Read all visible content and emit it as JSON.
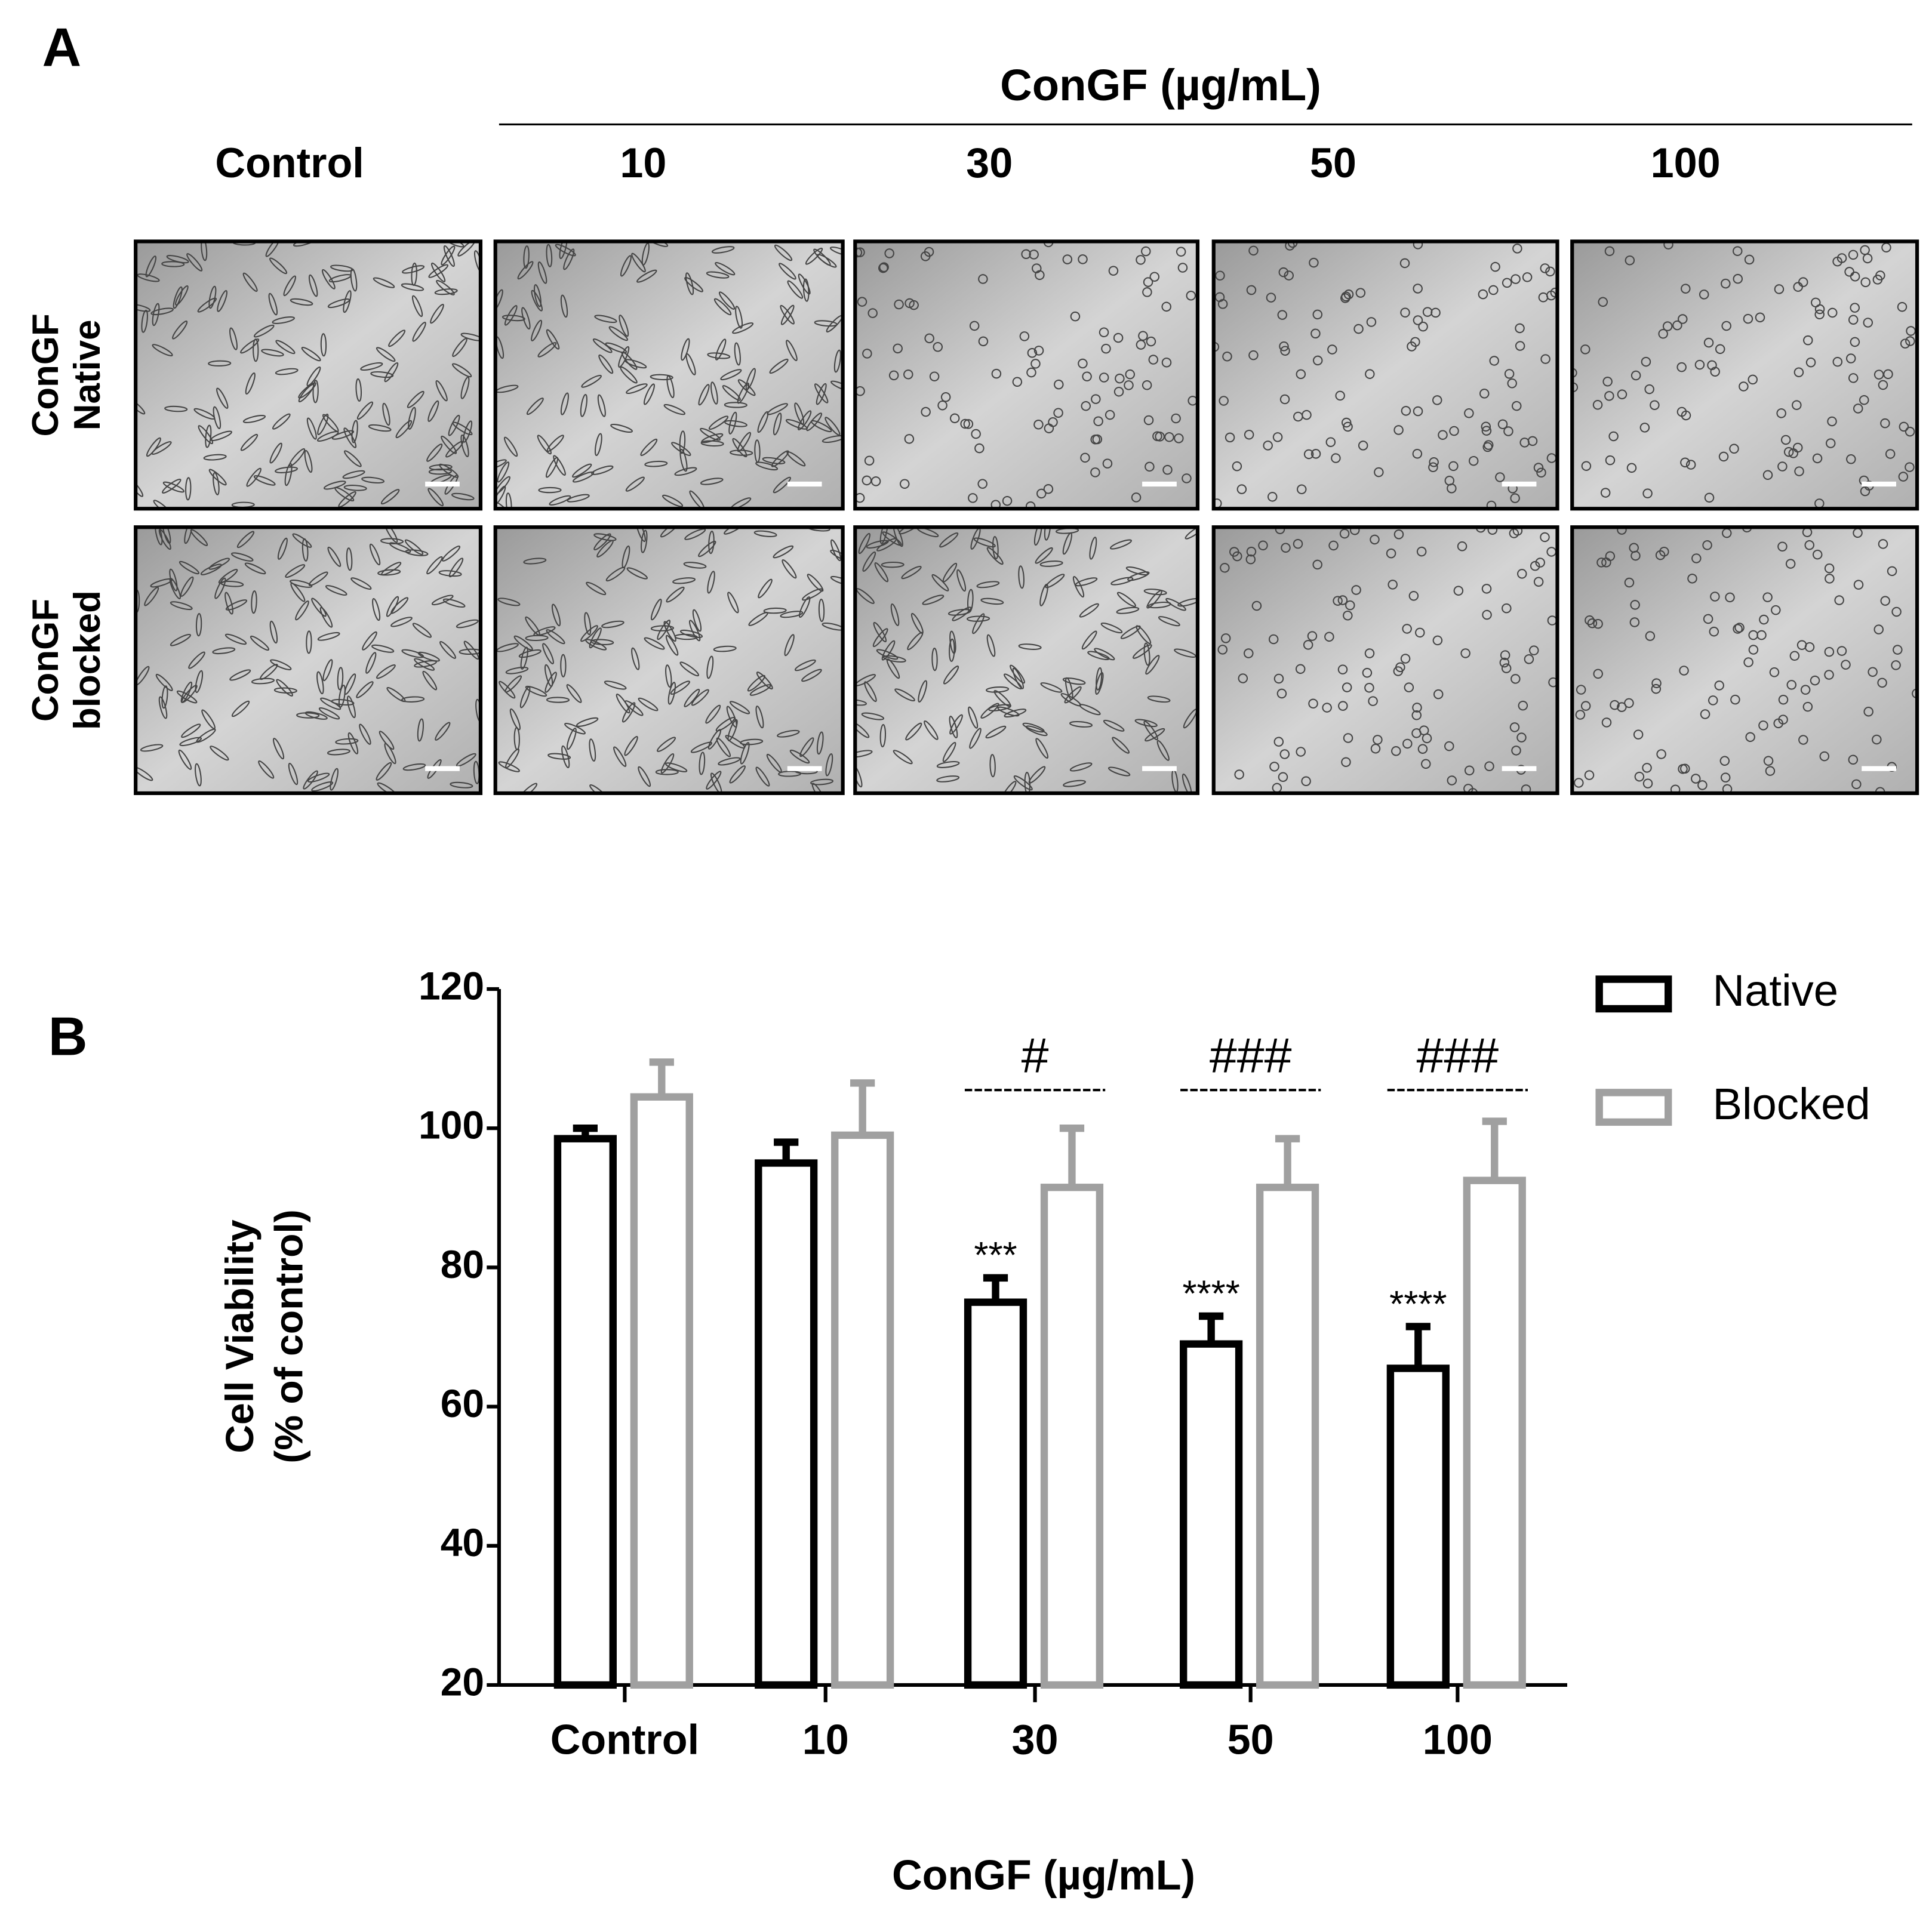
{
  "panel_a": {
    "label": "A",
    "header": "ConGF (µg/mL)",
    "columns": [
      "Control",
      "10",
      "30",
      "50",
      "100"
    ],
    "rows": [
      [
        "ConGF",
        "Native"
      ],
      [
        "ConGF",
        "blocked"
      ]
    ]
  },
  "chart_data": {
    "type": "bar",
    "panel_label": "B",
    "x_label": "ConGF (µg/mL)",
    "y_label": [
      "Cell Viability",
      "(% of control)"
    ],
    "categories": [
      "Control",
      "10",
      "30",
      "50",
      "100"
    ],
    "series": [
      {
        "name": "Native",
        "color": "#000000",
        "values": [
          98.5,
          95,
          75,
          69,
          65.5
        ],
        "errors": [
          1.5,
          3,
          3.5,
          4,
          6
        ],
        "annotations": [
          null,
          null,
          "***",
          "****",
          "****"
        ]
      },
      {
        "name": "Blocked",
        "color": "#a0a0a0",
        "values": [
          104.5,
          99,
          91.5,
          91.5,
          92.5
        ],
        "errors": [
          5,
          7.5,
          8.5,
          7,
          8.5
        ]
      }
    ],
    "group_annotations": [
      null,
      null,
      "#",
      "###",
      "###"
    ],
    "ylim": [
      20,
      120
    ],
    "yticks": [
      20,
      40,
      60,
      80,
      100,
      120
    ],
    "legend": "upper right"
  }
}
